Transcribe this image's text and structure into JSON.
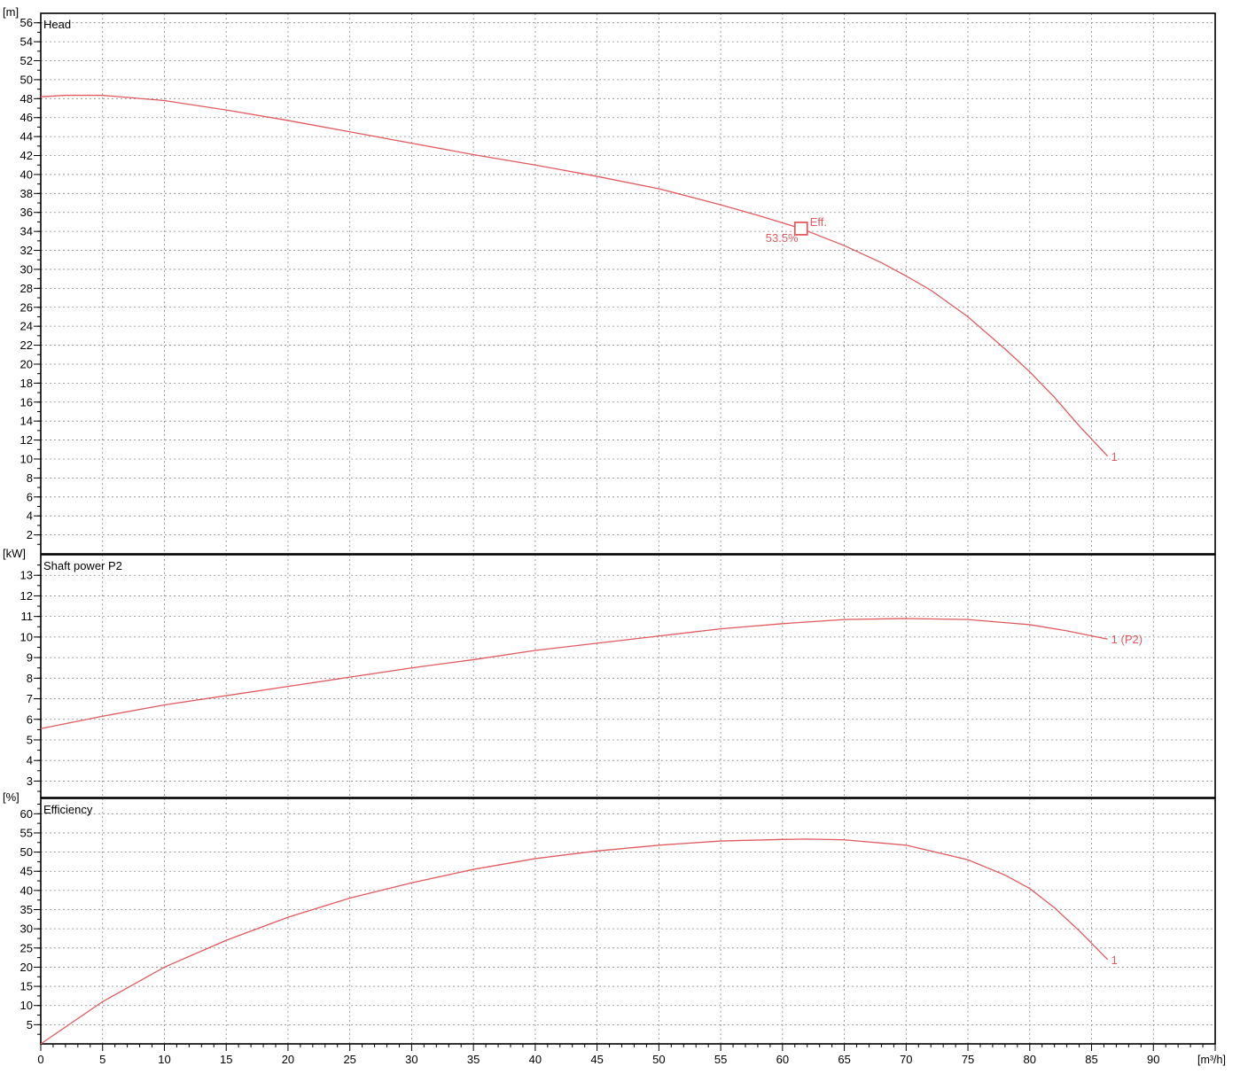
{
  "chart_data": [
    {
      "type": "line",
      "title": "Head",
      "ylabel": "[m]",
      "xlim": [
        0,
        95
      ],
      "ylim": [
        0,
        57
      ],
      "ytick_step": 2,
      "grid": true,
      "series": [
        {
          "name": "1",
          "color": "#e05a5f",
          "x": [
            0,
            2,
            5,
            10,
            15,
            20,
            25,
            30,
            35,
            40,
            45,
            50,
            55,
            58,
            61.5,
            65,
            68,
            70,
            72,
            75,
            78,
            80,
            82,
            84,
            86.3
          ],
          "y": [
            48.2,
            48.35,
            48.35,
            47.8,
            46.8,
            45.7,
            44.5,
            43.3,
            42.1,
            41.0,
            39.8,
            38.5,
            36.8,
            35.7,
            34.3,
            32.5,
            30.7,
            29.3,
            27.8,
            25.0,
            21.6,
            19.2,
            16.5,
            13.5,
            10.3
          ]
        }
      ],
      "annotations": [
        {
          "x": 61.5,
          "y": 34.3,
          "marker": "square",
          "label_top": "Eff.",
          "label_bottom": "53.5%"
        }
      ]
    },
    {
      "type": "line",
      "title": "Shaft power P2",
      "ylabel": "[kW]",
      "xlim": [
        0,
        95
      ],
      "ylim": [
        2.2,
        14
      ],
      "ytick_step": 1,
      "grid": true,
      "series": [
        {
          "name": "1 (P2)",
          "color": "#e05a5f",
          "x": [
            0,
            5,
            10,
            15,
            20,
            25,
            30,
            35,
            40,
            45,
            50,
            55,
            60,
            65,
            70,
            75,
            80,
            83,
            86.3
          ],
          "y": [
            5.55,
            6.15,
            6.7,
            7.15,
            7.6,
            8.05,
            8.5,
            8.9,
            9.35,
            9.7,
            10.05,
            10.4,
            10.65,
            10.85,
            10.9,
            10.85,
            10.6,
            10.3,
            9.9
          ]
        }
      ]
    },
    {
      "type": "line",
      "title": "Efficiency",
      "ylabel": "[%]",
      "xlabel": "[m³/h]",
      "xlim": [
        0,
        95
      ],
      "ylim": [
        0,
        64
      ],
      "ytick_step": 5,
      "grid": true,
      "series": [
        {
          "name": "1",
          "color": "#e05a5f",
          "x": [
            0,
            5,
            10,
            15,
            20,
            25,
            30,
            35,
            40,
            45,
            50,
            55,
            60,
            62,
            65,
            70,
            75,
            78,
            80,
            82,
            84,
            86.3
          ],
          "y": [
            0,
            11,
            20,
            27,
            33,
            38,
            42,
            45.5,
            48.3,
            50.3,
            51.8,
            52.9,
            53.3,
            53.4,
            53.2,
            51.8,
            48,
            44,
            40.5,
            35.5,
            29.5,
            22
          ]
        }
      ]
    }
  ]
}
